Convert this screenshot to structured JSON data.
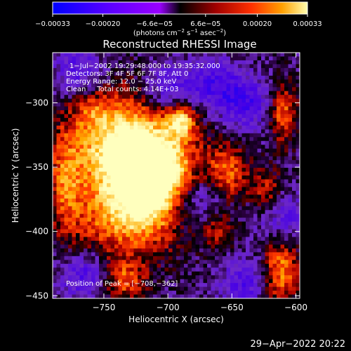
{
  "chart_data": {
    "type": "heatmap",
    "title": "Reconstructed RHESSI Image",
    "xlabel": "Heliocentric X (arcsec)",
    "ylabel": "Heliocentric Y (arcsec)",
    "xlim": [
      -790,
      -597
    ],
    "ylim": [
      -452,
      -261
    ],
    "x_ticks": [
      -750,
      -700,
      -650,
      -600
    ],
    "x_tick_labels": [
      "−750",
      "−700",
      "−650",
      "−600"
    ],
    "y_ticks": [
      -450,
      -400,
      -350,
      -300
    ],
    "y_tick_labels": [
      "−450",
      "−400",
      "−350",
      "−300"
    ],
    "colorbar": {
      "range": [
        -0.00033,
        0.00033
      ],
      "ticks": [
        -0.00033,
        -0.0002,
        -6.6e-05,
        6.6e-05,
        0.0002,
        0.00033
      ],
      "tick_labels": [
        "−0.00033",
        "−0.00020",
        "−6.6e−05",
        "6.6e−05",
        "0.00020",
        "0.00033"
      ],
      "unit_parts": [
        "(photons cm",
        "−2",
        " s",
        "−1",
        " asec",
        "−2",
        ")"
      ]
    },
    "annotations": {
      "time_range": "1−Jul−2002 19:29:48.000 to 19:35:32.000",
      "detectors": "Detectors: 3F 4F 5F 6F 7F 8F, Att 0",
      "energy_range": "Energy Range: 12.0 − 25.0 keV",
      "algorithm": "Clean     Total counts: 4.14E+03",
      "peak_position": "Position of Peak = [−708,−362]"
    },
    "peak": [
      -708,
      -362
    ],
    "sources": [
      {
        "x": -712,
        "y": -356,
        "amp": 1.0,
        "sx": 18,
        "sy": 20
      },
      {
        "x": -720,
        "y": -345,
        "amp": 0.8,
        "sx": 30,
        "sy": 34
      },
      {
        "x": -735,
        "y": -390,
        "amp": 0.55,
        "sx": 28,
        "sy": 22
      },
      {
        "x": -745,
        "y": -330,
        "amp": 0.55,
        "sx": 22,
        "sy": 24
      },
      {
        "x": -690,
        "y": -313,
        "amp": 0.75,
        "sx": 8,
        "sy": 9
      },
      {
        "x": -653,
        "y": -353,
        "amp": 0.55,
        "sx": 11,
        "sy": 14
      },
      {
        "x": -610,
        "y": -308,
        "amp": 0.6,
        "sx": 7,
        "sy": 16
      },
      {
        "x": -612,
        "y": -430,
        "amp": 0.7,
        "sx": 10,
        "sy": 20
      },
      {
        "x": -735,
        "y": -438,
        "amp": 0.55,
        "sx": 12,
        "sy": 11
      },
      {
        "x": -660,
        "y": -400,
        "amp": 0.4,
        "sx": 9,
        "sy": 9
      },
      {
        "x": -780,
        "y": -360,
        "amp": 0.5,
        "sx": 9,
        "sy": 28
      },
      {
        "x": -623,
        "y": -370,
        "amp": 0.45,
        "sx": 9,
        "sy": 12
      },
      {
        "x": -760,
        "y": -305,
        "amp": 0.25,
        "sx": 10,
        "sy": 10
      }
    ],
    "noise": [
      {
        "x": -700,
        "y": -290,
        "amp": -0.55
      },
      {
        "x": -680,
        "y": -375,
        "amp": -0.5
      },
      {
        "x": -640,
        "y": -300,
        "amp": -0.55
      },
      {
        "x": -610,
        "y": -390,
        "amp": -0.45
      },
      {
        "x": -765,
        "y": -435,
        "amp": -0.5
      },
      {
        "x": -665,
        "y": -285,
        "amp": -0.5
      },
      {
        "x": -770,
        "y": -275,
        "amp": -0.45
      },
      {
        "x": -640,
        "y": -440,
        "amp": -0.45
      }
    ]
  },
  "footer": {
    "timestamp": "29−Apr−2022 20:22"
  }
}
